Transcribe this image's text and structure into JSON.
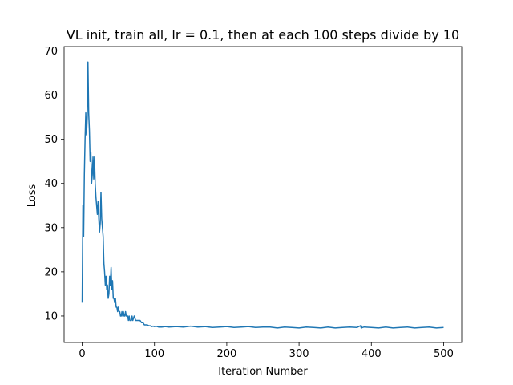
{
  "chart_data": {
    "type": "line",
    "title": "VL init, train all, lr = 0.1, then at each 100 steps divide by 10",
    "xlabel": "Iteration Number",
    "ylabel": "Loss",
    "xlim": [
      -25,
      525
    ],
    "ylim": [
      4,
      71
    ],
    "xticks": [
      0,
      100,
      200,
      300,
      400,
      500
    ],
    "yticks": [
      10,
      20,
      30,
      40,
      50,
      60,
      70
    ],
    "grid": false,
    "series": [
      {
        "color": "#1f77b4",
        "x": [
          0,
          1,
          2,
          3,
          4,
          5,
          6,
          7,
          8,
          9,
          10,
          11,
          12,
          13,
          14,
          15,
          16,
          17,
          18,
          19,
          20,
          21,
          22,
          23,
          24,
          25,
          26,
          27,
          28,
          29,
          30,
          31,
          32,
          33,
          34,
          35,
          36,
          37,
          38,
          39,
          40,
          41,
          42,
          43,
          44,
          45,
          46,
          47,
          48,
          49,
          50,
          51,
          52,
          53,
          54,
          55,
          56,
          57,
          58,
          59,
          60,
          61,
          62,
          63,
          64,
          65,
          66,
          67,
          68,
          69,
          70,
          72,
          74,
          76,
          78,
          80,
          82,
          84,
          86,
          88,
          90,
          92,
          94,
          96,
          98,
          100,
          102,
          104,
          106,
          108,
          110,
          115,
          120,
          130,
          140,
          150,
          160,
          170,
          180,
          190,
          200,
          210,
          220,
          230,
          240,
          250,
          260,
          270,
          280,
          290,
          300,
          310,
          320,
          330,
          340,
          350,
          360,
          370,
          380,
          385,
          386,
          390,
          400,
          410,
          420,
          430,
          440,
          450,
          460,
          470,
          480,
          490,
          500
        ],
        "y": [
          13,
          35,
          28,
          42,
          50,
          56,
          51,
          55,
          67.5,
          56,
          52,
          45,
          47,
          40,
          42,
          46,
          41,
          46,
          40,
          37,
          35,
          33,
          36,
          32,
          29,
          31,
          38,
          32,
          30,
          28,
          22,
          20,
          17,
          19,
          16,
          17,
          14,
          15,
          19,
          17,
          21,
          16,
          18,
          14,
          14,
          13,
          14,
          12,
          12,
          11,
          12,
          11,
          11,
          10,
          10,
          11,
          10,
          11,
          10,
          10,
          11,
          10,
          10,
          10,
          9,
          10,
          9,
          9,
          9,
          10,
          9,
          10,
          9,
          9,
          9,
          9,
          8.5,
          8.5,
          8,
          8,
          8,
          7.8,
          7.8,
          7.6,
          7.7,
          7.6,
          7.7,
          7.6,
          7.5,
          7.5,
          7.5,
          7.6,
          7.5,
          7.6,
          7.5,
          7.7,
          7.5,
          7.6,
          7.4,
          7.5,
          7.6,
          7.4,
          7.5,
          7.6,
          7.4,
          7.5,
          7.5,
          7.3,
          7.5,
          7.4,
          7.3,
          7.5,
          7.4,
          7.3,
          7.5,
          7.3,
          7.4,
          7.5,
          7.4,
          7.8,
          7.3,
          7.5,
          7.4,
          7.3,
          7.5,
          7.3,
          7.4,
          7.5,
          7.3,
          7.4,
          7.5,
          7.3,
          7.4
        ]
      }
    ]
  }
}
